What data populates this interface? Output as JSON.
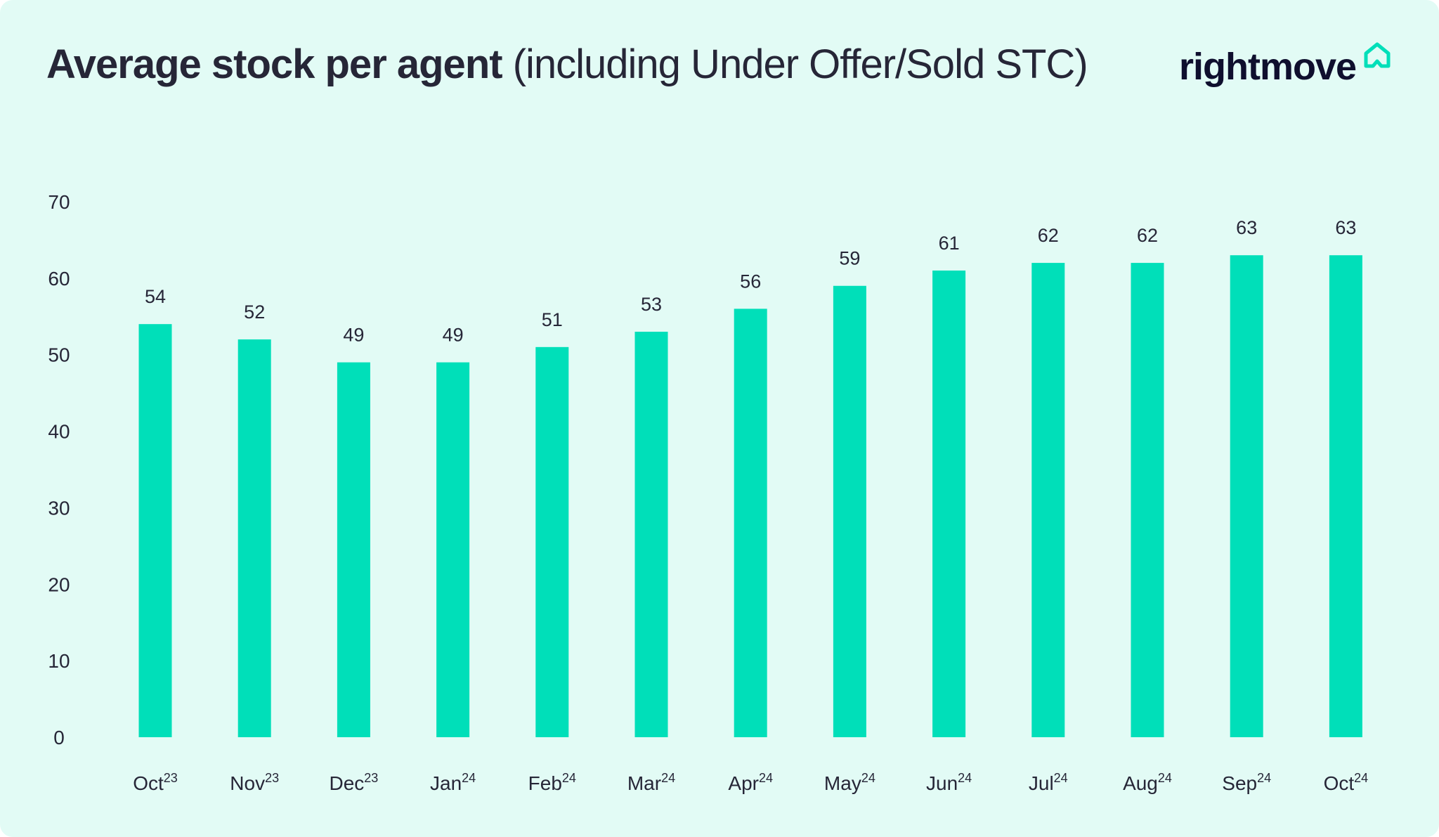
{
  "title": {
    "bold": "Average stock per agent",
    "light": "(including Under Offer/Sold STC)"
  },
  "logo": {
    "text": "rightmove",
    "icon": "house-outline-icon"
  },
  "colors": {
    "background": "#e2fbf5",
    "bar": "#00dfb9",
    "text": "#262637",
    "logo_text": "#0f0f2e"
  },
  "chart_data": {
    "type": "bar",
    "title": "Average stock per agent (including Under Offer/Sold STC)",
    "categories": [
      {
        "month": "Oct",
        "year": "23"
      },
      {
        "month": "Nov",
        "year": "23"
      },
      {
        "month": "Dec",
        "year": "23"
      },
      {
        "month": "Jan",
        "year": "24"
      },
      {
        "month": "Feb",
        "year": "24"
      },
      {
        "month": "Mar",
        "year": "24"
      },
      {
        "month": "Apr",
        "year": "24"
      },
      {
        "month": "May",
        "year": "24"
      },
      {
        "month": "Jun",
        "year": "24"
      },
      {
        "month": "Jul",
        "year": "24"
      },
      {
        "month": "Aug",
        "year": "24"
      },
      {
        "month": "Sep",
        "year": "24"
      },
      {
        "month": "Oct",
        "year": "24"
      }
    ],
    "values": [
      54,
      52,
      49,
      49,
      51,
      53,
      56,
      59,
      61,
      62,
      62,
      63,
      63
    ],
    "yticks": [
      0,
      10,
      20,
      30,
      40,
      50,
      60,
      70
    ],
    "ylim": [
      0,
      70
    ],
    "grid": false,
    "legend": "none",
    "data_labels": true
  }
}
